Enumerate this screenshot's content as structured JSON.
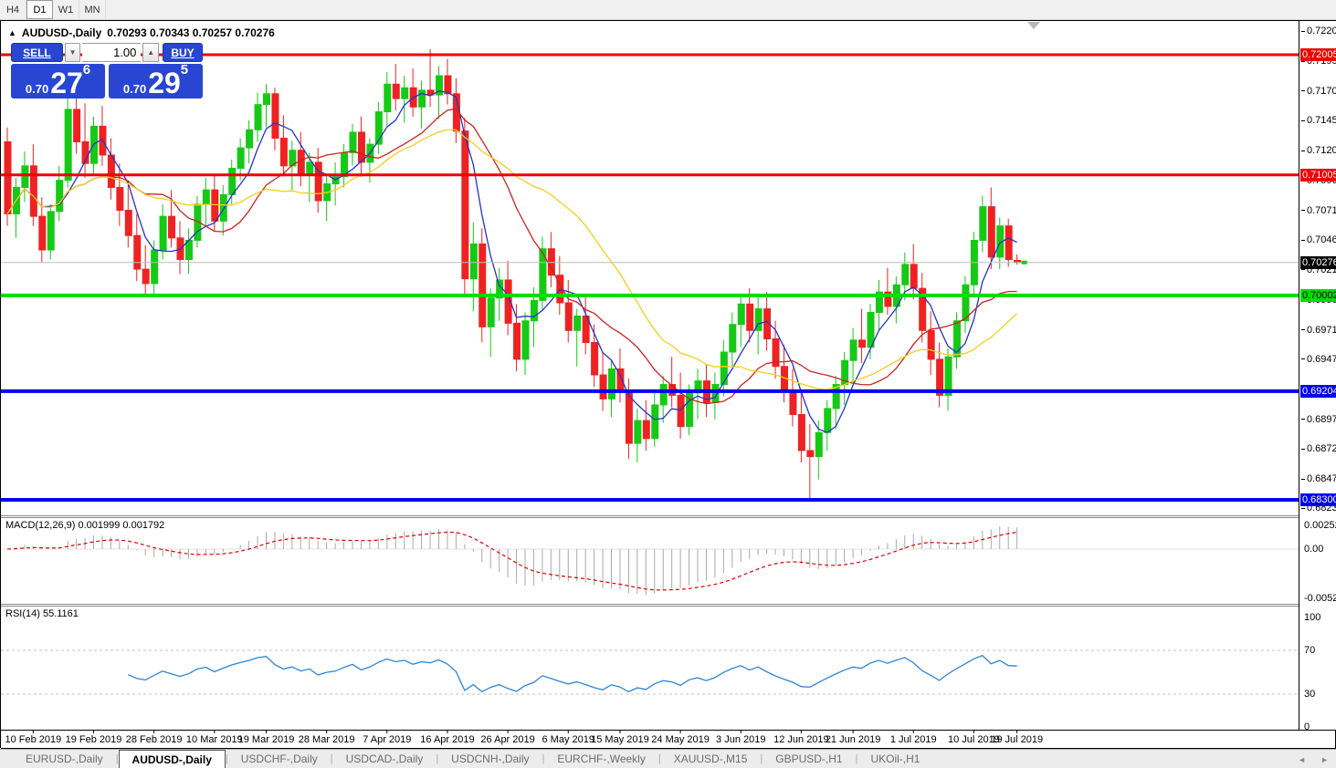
{
  "timeframe_toolbar": {
    "items": [
      "H4",
      "D1",
      "W1",
      "MN"
    ],
    "active": "D1"
  },
  "chart_header": {
    "triangle_icon": "▲",
    "symbol_label": "AUDUSD-,Daily",
    "ohlc_text": "0.70293 0.70343 0.70257 0.70276"
  },
  "trade_panel": {
    "sell_label": "SELL",
    "buy_label": "BUY",
    "volume": "1.00",
    "spinner_down_icon": "▼",
    "spinner_up_icon": "▲",
    "sell_price": {
      "small": "0.70",
      "big": "27",
      "sup": "6"
    },
    "buy_price": {
      "small": "0.70",
      "big": "29",
      "sup": "5"
    }
  },
  "price_axis": {
    "ticks": [
      "0.72200",
      "0.71950",
      "0.71705",
      "0.71455",
      "0.71205",
      "0.70960",
      "0.70710",
      "0.70460",
      "0.70215",
      "0.69965",
      "0.69715",
      "0.69470",
      "0.69220",
      "0.68970",
      "0.68725",
      "0.68475",
      "0.68230"
    ],
    "badges": [
      {
        "text": "0.72005",
        "price": 0.72005,
        "bg": "#ee0000",
        "fg": "#ffffff"
      },
      {
        "text": "0.71005",
        "price": 0.71005,
        "bg": "#ee0000",
        "fg": "#ffffff"
      },
      {
        "text": "0.70276",
        "price": 0.70276,
        "bg": "#000000",
        "fg": "#ffffff"
      },
      {
        "text": "0.70002",
        "price": 0.70002,
        "bg": "#00dd00",
        "fg": "#000000"
      },
      {
        "text": "0.69204",
        "price": 0.69204,
        "bg": "#0000ee",
        "fg": "#ffffff"
      },
      {
        "text": "0.68300",
        "price": 0.683,
        "bg": "#0000ee",
        "fg": "#ffffff"
      }
    ]
  },
  "chart_data": {
    "type": "candlestick",
    "symbol": "AUDUSD",
    "period": "Daily",
    "levels": [
      {
        "price": 0.72005,
        "color": "#ee0000",
        "w": 3
      },
      {
        "price": 0.71005,
        "color": "#ee0000",
        "w": 3
      },
      {
        "price": 0.70002,
        "color": "#00dd00",
        "w": 4
      },
      {
        "price": 0.69204,
        "color": "#0000ee",
        "w": 4
      },
      {
        "price": 0.683,
        "color": "#0000ee",
        "w": 4
      }
    ],
    "current_price_line": {
      "price": 0.70276,
      "color": "#bbbbbb"
    },
    "bull_color": "#16c916",
    "bear_color": "#ee2222",
    "moving_averages": [
      {
        "period": 5,
        "color": "#2233cc"
      },
      {
        "period": 13,
        "color": "#cc2222"
      },
      {
        "period": 24,
        "color": "#f2cf1d"
      }
    ],
    "x_dates": [
      "10 Feb 2019",
      "19 Feb 2019",
      "28 Feb 2019",
      "10 Mar 2019",
      "19 Mar 2019",
      "28 Mar 2019",
      "7 Apr 2019",
      "16 Apr 2019",
      "26 Apr 2019",
      "6 May 2019",
      "15 May 2019",
      "24 May 2019",
      "3 Jun 2019",
      "12 Jun 2019",
      "21 Jun 2019",
      "1 Jul 2019",
      "10 Jul 2019",
      "19 Jul 2019"
    ],
    "x_tick_candle_index": [
      3,
      10,
      17,
      24,
      30,
      37,
      44,
      51,
      58,
      65,
      71,
      78,
      85,
      92,
      98,
      105,
      112,
      117
    ],
    "candles": [
      [
        0.7128,
        0.714,
        0.7058,
        0.7068
      ],
      [
        0.7068,
        0.7098,
        0.7048,
        0.709
      ],
      [
        0.709,
        0.712,
        0.7078,
        0.7108
      ],
      [
        0.7108,
        0.7126,
        0.7058,
        0.7066
      ],
      [
        0.7066,
        0.7082,
        0.7028,
        0.7038
      ],
      [
        0.7038,
        0.7076,
        0.703,
        0.707
      ],
      [
        0.707,
        0.7108,
        0.7062,
        0.7096
      ],
      [
        0.7096,
        0.7165,
        0.709,
        0.7155
      ],
      [
        0.7155,
        0.7173,
        0.7118,
        0.7128
      ],
      [
        0.7128,
        0.716,
        0.7098,
        0.711
      ],
      [
        0.711,
        0.7149,
        0.71,
        0.7141
      ],
      [
        0.7141,
        0.7158,
        0.7108,
        0.7117
      ],
      [
        0.7117,
        0.7131,
        0.708,
        0.709
      ],
      [
        0.709,
        0.711,
        0.7058,
        0.7071
      ],
      [
        0.7071,
        0.7095,
        0.704,
        0.705
      ],
      [
        0.705,
        0.7068,
        0.7012,
        0.7022
      ],
      [
        0.7022,
        0.7042,
        0.7,
        0.701
      ],
      [
        0.701,
        0.7046,
        0.6999,
        0.7038
      ],
      [
        0.7038,
        0.7076,
        0.703,
        0.7066
      ],
      [
        0.7066,
        0.7088,
        0.704,
        0.7048
      ],
      [
        0.7048,
        0.7062,
        0.7018,
        0.703
      ],
      [
        0.703,
        0.7056,
        0.7018,
        0.7046
      ],
      [
        0.7046,
        0.7083,
        0.704,
        0.7076
      ],
      [
        0.7076,
        0.7098,
        0.7058,
        0.7088
      ],
      [
        0.7088,
        0.7101,
        0.7054,
        0.7062
      ],
      [
        0.7062,
        0.7092,
        0.705,
        0.7084
      ],
      [
        0.7084,
        0.7113,
        0.7076,
        0.7106
      ],
      [
        0.7106,
        0.7131,
        0.7096,
        0.7123
      ],
      [
        0.7123,
        0.7146,
        0.711,
        0.7138
      ],
      [
        0.7138,
        0.7169,
        0.7128,
        0.7159
      ],
      [
        0.7159,
        0.7176,
        0.714,
        0.7168
      ],
      [
        0.7168,
        0.7173,
        0.7121,
        0.7131
      ],
      [
        0.7131,
        0.715,
        0.7099,
        0.7108
      ],
      [
        0.7108,
        0.7129,
        0.7088,
        0.7121
      ],
      [
        0.7121,
        0.7136,
        0.7091,
        0.71
      ],
      [
        0.71,
        0.7119,
        0.7078,
        0.7111
      ],
      [
        0.7111,
        0.7123,
        0.7069,
        0.7079
      ],
      [
        0.7079,
        0.7101,
        0.7062,
        0.7093
      ],
      [
        0.7093,
        0.7111,
        0.7075,
        0.7099
      ],
      [
        0.7099,
        0.7126,
        0.709,
        0.7119
      ],
      [
        0.7119,
        0.7143,
        0.7108,
        0.7136
      ],
      [
        0.7136,
        0.7149,
        0.7099,
        0.7111
      ],
      [
        0.7111,
        0.7131,
        0.7094,
        0.7126
      ],
      [
        0.7126,
        0.7161,
        0.7118,
        0.7153
      ],
      [
        0.7153,
        0.7186,
        0.7141,
        0.7176
      ],
      [
        0.7176,
        0.7193,
        0.7154,
        0.7164
      ],
      [
        0.7164,
        0.7183,
        0.7144,
        0.7173
      ],
      [
        0.7173,
        0.7189,
        0.7149,
        0.7157
      ],
      [
        0.7157,
        0.7179,
        0.7139,
        0.7171
      ],
      [
        0.7171,
        0.7205,
        0.7157,
        0.7167
      ],
      [
        0.7167,
        0.7191,
        0.7147,
        0.7183
      ],
      [
        0.7183,
        0.7197,
        0.7159,
        0.7168
      ],
      [
        0.7168,
        0.7181,
        0.7127,
        0.7137
      ],
      [
        0.7137,
        0.7148,
        0.7001,
        0.7014
      ],
      [
        0.7014,
        0.7061,
        0.6987,
        0.7043
      ],
      [
        0.7043,
        0.7056,
        0.6961,
        0.6974
      ],
      [
        0.6974,
        0.7006,
        0.6949,
        0.6998
      ],
      [
        0.6998,
        0.7023,
        0.6979,
        0.7013
      ],
      [
        0.7013,
        0.7029,
        0.6967,
        0.6977
      ],
      [
        0.6977,
        0.6993,
        0.6937,
        0.6947
      ],
      [
        0.6947,
        0.6986,
        0.6934,
        0.6979
      ],
      [
        0.6979,
        0.7007,
        0.6957,
        0.6996
      ],
      [
        0.6996,
        0.7049,
        0.6988,
        0.7039
      ],
      [
        0.7039,
        0.7053,
        0.7007,
        0.7017
      ],
      [
        0.7017,
        0.7033,
        0.6984,
        0.6994
      ],
      [
        0.6994,
        0.7013,
        0.6961,
        0.6971
      ],
      [
        0.6971,
        0.6989,
        0.6941,
        0.6983
      ],
      [
        0.6983,
        0.6999,
        0.6951,
        0.6961
      ],
      [
        0.6961,
        0.6976,
        0.6924,
        0.6934
      ],
      [
        0.6934,
        0.6953,
        0.6904,
        0.6914
      ],
      [
        0.6914,
        0.6946,
        0.6899,
        0.6939
      ],
      [
        0.6939,
        0.6956,
        0.6911,
        0.6921
      ],
      [
        0.6921,
        0.6931,
        0.6864,
        0.6877
      ],
      [
        0.6877,
        0.6906,
        0.6861,
        0.6896
      ],
      [
        0.6896,
        0.6913,
        0.6871,
        0.6881
      ],
      [
        0.6881,
        0.6919,
        0.6874,
        0.6909
      ],
      [
        0.6909,
        0.6933,
        0.6894,
        0.6926
      ],
      [
        0.6926,
        0.6949,
        0.6907,
        0.6917
      ],
      [
        0.6917,
        0.6936,
        0.6881,
        0.6891
      ],
      [
        0.6891,
        0.6926,
        0.6884,
        0.6919
      ],
      [
        0.6919,
        0.6939,
        0.6897,
        0.6929
      ],
      [
        0.6929,
        0.6943,
        0.6899,
        0.6911
      ],
      [
        0.6911,
        0.6936,
        0.6897,
        0.6926
      ],
      [
        0.6926,
        0.6963,
        0.6916,
        0.6953
      ],
      [
        0.6953,
        0.6986,
        0.6941,
        0.6976
      ],
      [
        0.6976,
        0.7001,
        0.6957,
        0.6993
      ],
      [
        0.6993,
        0.7006,
        0.6961,
        0.6971
      ],
      [
        0.6971,
        0.6999,
        0.6951,
        0.6989
      ],
      [
        0.6989,
        0.7003,
        0.6954,
        0.6964
      ],
      [
        0.6964,
        0.6979,
        0.6931,
        0.6941
      ],
      [
        0.6941,
        0.6959,
        0.6911,
        0.6921
      ],
      [
        0.6921,
        0.6939,
        0.6891,
        0.6901
      ],
      [
        0.6901,
        0.6919,
        0.6861,
        0.6871
      ],
      [
        0.6871,
        0.6893,
        0.6831,
        0.6866
      ],
      [
        0.6866,
        0.6896,
        0.6847,
        0.6886
      ],
      [
        0.6886,
        0.6913,
        0.6871,
        0.6906
      ],
      [
        0.6906,
        0.6933,
        0.6889,
        0.6926
      ],
      [
        0.6926,
        0.6953,
        0.6909,
        0.6946
      ],
      [
        0.6946,
        0.6973,
        0.6927,
        0.6963
      ],
      [
        0.6963,
        0.6989,
        0.6944,
        0.6957
      ],
      [
        0.6957,
        0.6993,
        0.6947,
        0.6986
      ],
      [
        0.6986,
        0.7013,
        0.6971,
        0.7003
      ],
      [
        0.7003,
        0.7023,
        0.6984,
        0.6991
      ],
      [
        0.6991,
        0.7016,
        0.6977,
        0.7009
      ],
      [
        0.7009,
        0.7036,
        0.6996,
        0.7026
      ],
      [
        0.7026,
        0.7043,
        0.6997,
        0.7006
      ],
      [
        0.7006,
        0.7019,
        0.6961,
        0.6971
      ],
      [
        0.6971,
        0.6987,
        0.6934,
        0.6947
      ],
      [
        0.6947,
        0.6961,
        0.6907,
        0.6917
      ],
      [
        0.6917,
        0.6956,
        0.6904,
        0.6949
      ],
      [
        0.6949,
        0.6986,
        0.6939,
        0.6979
      ],
      [
        0.6979,
        0.7016,
        0.6969,
        0.7009
      ],
      [
        0.7009,
        0.7053,
        0.6999,
        0.7046
      ],
      [
        0.7046,
        0.7083,
        0.7036,
        0.7074
      ],
      [
        0.7074,
        0.709,
        0.7022,
        0.7032
      ],
      [
        0.7032,
        0.7065,
        0.7022,
        0.7058
      ],
      [
        0.7058,
        0.7064,
        0.7024,
        0.703
      ],
      [
        0.70293,
        0.70343,
        0.70257,
        0.70276
      ]
    ],
    "macd": {
      "label_text": "MACD(12,26,9) 0.001999 0.001792",
      "fast": 12,
      "slow": 26,
      "signal": 9,
      "histogram_color": "#a9a9a9",
      "signal_color": "#dd0000",
      "axis": [
        {
          "text": "0.002522",
          "v": 0.002522
        },
        {
          "text": "0.00",
          "v": 0
        },
        {
          "text": "-0.005234",
          "v": -0.005234
        }
      ]
    },
    "rsi": {
      "label_text": "RSI(14) 55.1161",
      "period": 14,
      "line_color": "#2f84d6",
      "axis": [
        {
          "text": "100",
          "v": 100
        },
        {
          "text": "70",
          "v": 70
        },
        {
          "text": "30",
          "v": 30
        },
        {
          "text": "0",
          "v": 0
        }
      ],
      "dashed_levels": [
        70,
        30
      ]
    }
  },
  "bottom_tabs": {
    "items": [
      "EURUSD-,Daily",
      "AUDUSD-,Daily",
      "USDCHF-,Daily",
      "USDCAD-,Daily",
      "USDCNH-,Daily",
      "EURCHF-,Weekly",
      "XAUUSD-,M15",
      "GBPUSD-,H1",
      "UKOil-,H1"
    ],
    "active": "AUDUSD-,Daily",
    "scroll_left_icon": "◄",
    "scroll_right_icon": "►"
  }
}
